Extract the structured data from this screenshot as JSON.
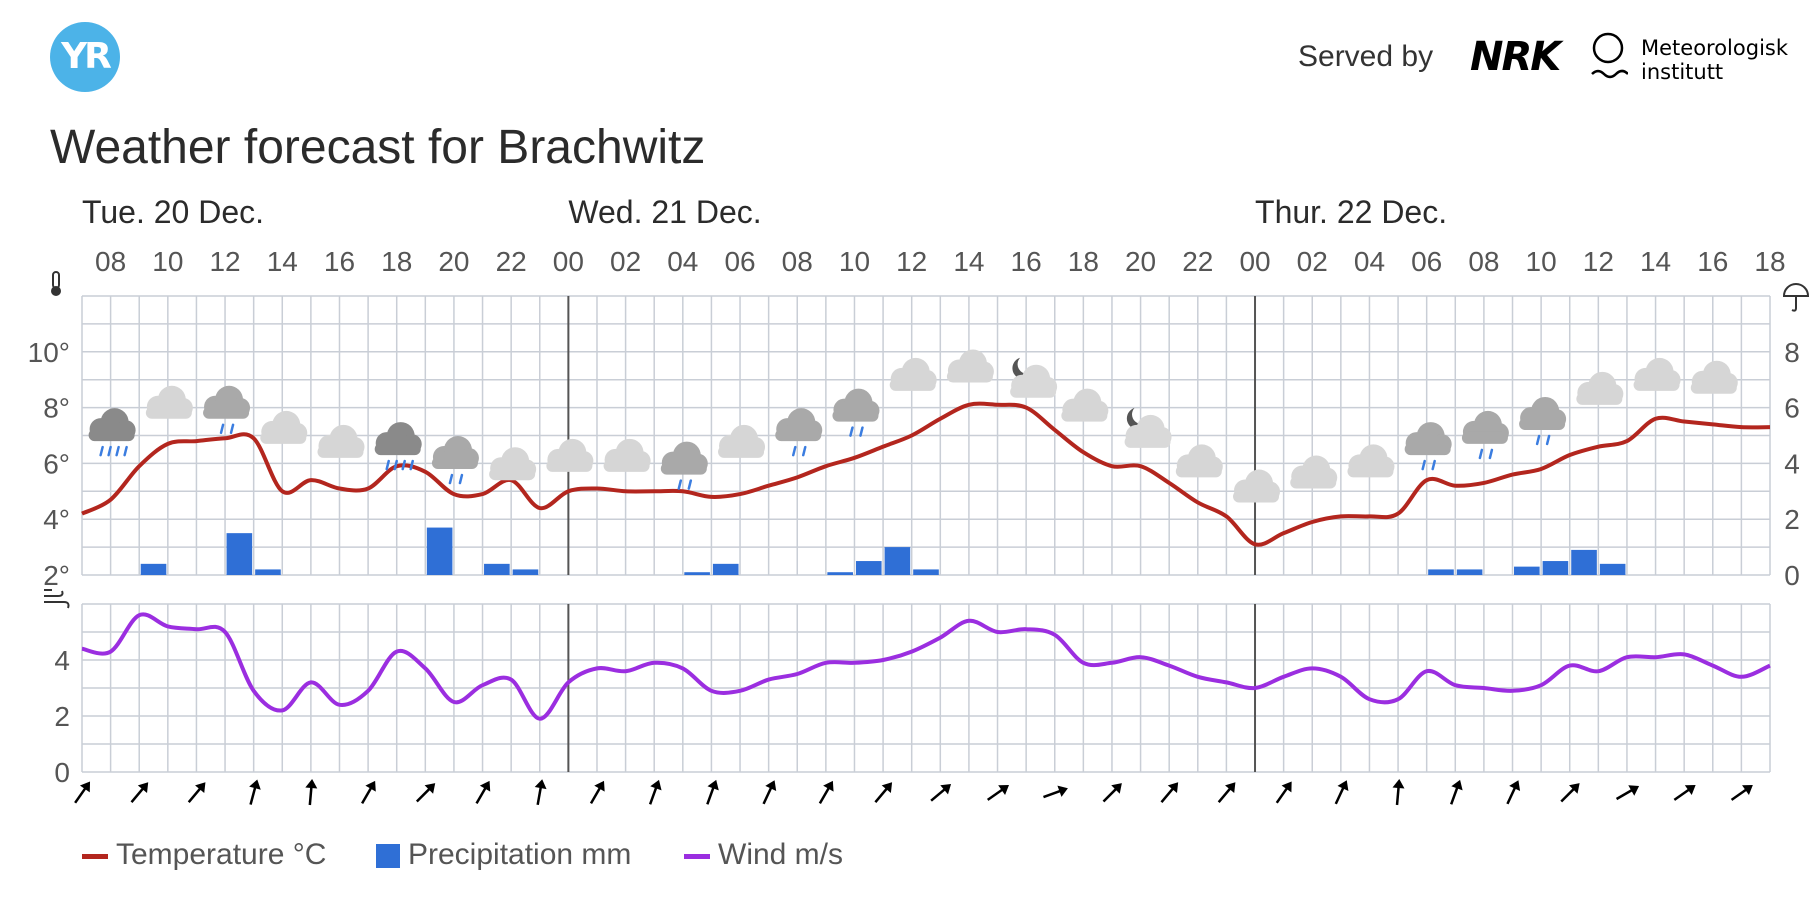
{
  "header": {
    "logo_text": "YR",
    "served_by": "Served by",
    "nrk": "NRK",
    "met_line1": "Meteorologisk",
    "met_line2": "institutt"
  },
  "page_title": "Weather forecast for Brachwitz",
  "colors": {
    "temperature": "#b3261e",
    "precipitation": "#2f6fd6",
    "wind": "#9b2ee0",
    "grid": "#c9ced6",
    "logo": "#4cb3e8"
  },
  "legend": {
    "temperature": "Temperature °C",
    "precipitation": "Precipitation mm",
    "wind": "Wind m/s"
  },
  "chart_data": {
    "type": "line",
    "days": [
      {
        "label": "Tue. 20 Dec.",
        "start_hour": 7
      },
      {
        "label": "Wed. 21 Dec.",
        "start_hour": 24
      },
      {
        "label": "Thur. 22 Dec.",
        "start_hour": 48
      }
    ],
    "x_range_hours": [
      7,
      66
    ],
    "x_tick_labels": [
      "08",
      "10",
      "12",
      "14",
      "16",
      "18",
      "20",
      "22",
      "00",
      "02",
      "04",
      "06",
      "08",
      "10",
      "12",
      "14",
      "16",
      "18",
      "20",
      "22",
      "00",
      "02",
      "04",
      "06",
      "08",
      "10",
      "12",
      "14",
      "16",
      "18"
    ],
    "temperature": {
      "name": "Temperature °C",
      "ylim": [
        2,
        12
      ],
      "ytick_labels": [
        "2°",
        "4°",
        "6°",
        "8°",
        "10°"
      ],
      "hours": [
        7,
        8,
        9,
        10,
        11,
        12,
        13,
        14,
        15,
        16,
        17,
        18,
        19,
        20,
        21,
        22,
        23,
        24,
        25,
        26,
        27,
        28,
        29,
        30,
        31,
        32,
        33,
        34,
        35,
        36,
        37,
        38,
        39,
        40,
        41,
        42,
        43,
        44,
        45,
        46,
        47,
        48,
        49,
        50,
        51,
        52,
        53,
        54,
        55,
        56,
        57,
        58,
        59,
        60,
        61,
        62,
        63,
        64,
        65,
        66
      ],
      "values": [
        4.2,
        4.7,
        5.9,
        6.7,
        6.8,
        6.9,
        6.9,
        5.0,
        5.4,
        5.1,
        5.1,
        5.9,
        5.7,
        4.9,
        4.9,
        5.4,
        4.4,
        5.0,
        5.1,
        5.0,
        5.0,
        5.0,
        4.8,
        4.9,
        5.2,
        5.5,
        5.9,
        6.2,
        6.6,
        7.0,
        7.6,
        8.1,
        8.1,
        8.0,
        7.2,
        6.4,
        5.9,
        5.9,
        5.3,
        4.6,
        4.1,
        3.1,
        3.5,
        3.9,
        4.1,
        4.1,
        4.2,
        5.4,
        5.2,
        5.3,
        5.6,
        5.8,
        6.3,
        6.6,
        6.8,
        7.6,
        7.5,
        7.4,
        7.3,
        7.3
      ]
    },
    "precipitation": {
      "name": "Precipitation mm",
      "ylim": [
        0,
        10
      ],
      "ytick_labels": [
        "0",
        "2",
        "4",
        "6",
        "8"
      ],
      "bars": [
        {
          "hour": 9,
          "value": 0.4
        },
        {
          "hour": 12,
          "value": 1.5
        },
        {
          "hour": 13,
          "value": 0.2
        },
        {
          "hour": 19,
          "value": 1.7
        },
        {
          "hour": 21,
          "value": 0.4
        },
        {
          "hour": 22,
          "value": 0.2
        },
        {
          "hour": 28,
          "value": 0.1
        },
        {
          "hour": 29,
          "value": 0.4
        },
        {
          "hour": 33,
          "value": 0.1
        },
        {
          "hour": 34,
          "value": 0.5
        },
        {
          "hour": 35,
          "value": 1.0
        },
        {
          "hour": 36,
          "value": 0.2
        },
        {
          "hour": 54,
          "value": 0.2
        },
        {
          "hour": 55,
          "value": 0.2
        },
        {
          "hour": 57,
          "value": 0.3
        },
        {
          "hour": 58,
          "value": 0.5
        },
        {
          "hour": 59,
          "value": 0.9
        },
        {
          "hour": 60,
          "value": 0.4
        }
      ]
    },
    "wind": {
      "name": "Wind m/s",
      "ylim": [
        0,
        6
      ],
      "ytick_labels": [
        "0",
        "2",
        "4"
      ],
      "hours": [
        7,
        8,
        9,
        10,
        11,
        12,
        13,
        14,
        15,
        16,
        17,
        18,
        19,
        20,
        21,
        22,
        23,
        24,
        25,
        26,
        27,
        28,
        29,
        30,
        31,
        32,
        33,
        34,
        35,
        36,
        37,
        38,
        39,
        40,
        41,
        42,
        43,
        44,
        45,
        46,
        47,
        48,
        49,
        50,
        51,
        52,
        53,
        54,
        55,
        56,
        57,
        58,
        59,
        60,
        61,
        62,
        63,
        64,
        65,
        66
      ],
      "values": [
        4.4,
        4.3,
        5.6,
        5.2,
        5.1,
        5.0,
        2.9,
        2.2,
        3.2,
        2.4,
        2.9,
        4.3,
        3.7,
        2.5,
        3.1,
        3.3,
        1.9,
        3.2,
        3.7,
        3.6,
        3.9,
        3.7,
        2.9,
        2.9,
        3.3,
        3.5,
        3.9,
        3.9,
        4.0,
        4.3,
        4.8,
        5.4,
        5.0,
        5.1,
        4.9,
        3.9,
        3.9,
        4.1,
        3.8,
        3.4,
        3.2,
        3.0,
        3.4,
        3.7,
        3.4,
        2.6,
        2.6,
        3.6,
        3.1,
        3.0,
        2.9,
        3.1,
        3.8,
        3.6,
        4.1,
        4.1,
        4.2,
        3.8,
        3.4,
        3.8
      ]
    },
    "weather_icons": [
      {
        "hour": 8,
        "icon": "heavy-rain-cloud-icon",
        "temp": 7.3
      },
      {
        "hour": 10,
        "icon": "cloud-icon",
        "temp": 8.1
      },
      {
        "hour": 12,
        "icon": "rain-cloud-icon",
        "temp": 8.1
      },
      {
        "hour": 14,
        "icon": "cloud-icon",
        "temp": 7.2
      },
      {
        "hour": 16,
        "icon": "cloud-icon",
        "temp": 6.7
      },
      {
        "hour": 18,
        "icon": "heavy-rain-cloud-icon",
        "temp": 6.8
      },
      {
        "hour": 20,
        "icon": "rain-cloud-icon",
        "temp": 6.3
      },
      {
        "hour": 22,
        "icon": "cloud-icon",
        "temp": 5.9
      },
      {
        "hour": 24,
        "icon": "cloud-icon",
        "temp": 6.2
      },
      {
        "hour": 26,
        "icon": "cloud-icon",
        "temp": 6.2
      },
      {
        "hour": 28,
        "icon": "rain-cloud-icon",
        "temp": 6.1
      },
      {
        "hour": 30,
        "icon": "cloud-icon",
        "temp": 6.7
      },
      {
        "hour": 32,
        "icon": "rain-cloud-icon",
        "temp": 7.3
      },
      {
        "hour": 34,
        "icon": "rain-cloud-icon",
        "temp": 8.0
      },
      {
        "hour": 36,
        "icon": "cloud-icon",
        "temp": 9.1
      },
      {
        "hour": 38,
        "icon": "cloud-icon",
        "temp": 9.4
      },
      {
        "hour": 40,
        "icon": "partly-cloudy-night-icon",
        "temp": 9.0
      },
      {
        "hour": 42,
        "icon": "cloud-icon",
        "temp": 8.0
      },
      {
        "hour": 44,
        "icon": "partly-cloudy-night-icon",
        "temp": 7.2
      },
      {
        "hour": 46,
        "icon": "cloud-icon",
        "temp": 6.0
      },
      {
        "hour": 48,
        "icon": "cloud-icon",
        "temp": 5.1
      },
      {
        "hour": 50,
        "icon": "cloud-icon",
        "temp": 5.6
      },
      {
        "hour": 52,
        "icon": "cloud-icon",
        "temp": 6.0
      },
      {
        "hour": 54,
        "icon": "rain-cloud-icon",
        "temp": 6.8
      },
      {
        "hour": 56,
        "icon": "rain-cloud-icon",
        "temp": 7.2
      },
      {
        "hour": 58,
        "icon": "rain-cloud-icon",
        "temp": 7.7
      },
      {
        "hour": 60,
        "icon": "cloud-icon",
        "temp": 8.6
      },
      {
        "hour": 62,
        "icon": "cloud-icon",
        "temp": 9.1
      },
      {
        "hour": 64,
        "icon": "cloud-icon",
        "temp": 9.0
      }
    ],
    "wind_direction_arrows": [
      {
        "hour": 7,
        "direction_deg": 35
      },
      {
        "hour": 9,
        "direction_deg": 40
      },
      {
        "hour": 11,
        "direction_deg": 40
      },
      {
        "hour": 13,
        "direction_deg": 15
      },
      {
        "hour": 15,
        "direction_deg": 5
      },
      {
        "hour": 17,
        "direction_deg": 30
      },
      {
        "hour": 19,
        "direction_deg": 45
      },
      {
        "hour": 21,
        "direction_deg": 30
      },
      {
        "hour": 23,
        "direction_deg": 10
      },
      {
        "hour": 25,
        "direction_deg": 30
      },
      {
        "hour": 27,
        "direction_deg": 20
      },
      {
        "hour": 29,
        "direction_deg": 20
      },
      {
        "hour": 31,
        "direction_deg": 25
      },
      {
        "hour": 33,
        "direction_deg": 30
      },
      {
        "hour": 35,
        "direction_deg": 40
      },
      {
        "hour": 37,
        "direction_deg": 50
      },
      {
        "hour": 39,
        "direction_deg": 55
      },
      {
        "hour": 41,
        "direction_deg": 70
      },
      {
        "hour": 43,
        "direction_deg": 45
      },
      {
        "hour": 45,
        "direction_deg": 40
      },
      {
        "hour": 47,
        "direction_deg": 40
      },
      {
        "hour": 49,
        "direction_deg": 35
      },
      {
        "hour": 51,
        "direction_deg": 25
      },
      {
        "hour": 53,
        "direction_deg": 5
      },
      {
        "hour": 55,
        "direction_deg": 20
      },
      {
        "hour": 57,
        "direction_deg": 25
      },
      {
        "hour": 59,
        "direction_deg": 45
      },
      {
        "hour": 61,
        "direction_deg": 60
      },
      {
        "hour": 63,
        "direction_deg": 55
      },
      {
        "hour": 65,
        "direction_deg": 55
      }
    ],
    "grid": true
  }
}
